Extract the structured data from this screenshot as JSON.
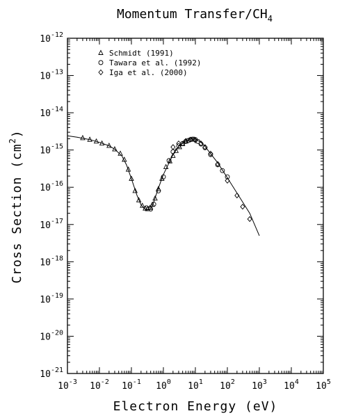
{
  "chart_data": {
    "type": "scatter",
    "title_main": "Momentum Transfer/CH",
    "title_sub": "4",
    "xlabel": "Electron Energy (eV)",
    "ylabel_main": "Cross Section (cm",
    "ylabel_sup": "2",
    "ylabel_end": ")",
    "x_scale": "log",
    "y_scale": "log",
    "xlim": [
      0.001,
      100000
    ],
    "ylim": [
      1e-21,
      1e-12
    ],
    "x_ticks": [
      {
        "base": "10",
        "exp": "-3",
        "value": 0.001
      },
      {
        "base": "10",
        "exp": "-2",
        "value": 0.01
      },
      {
        "base": "10",
        "exp": "-1",
        "value": 0.1
      },
      {
        "base": "10",
        "exp": "0",
        "value": 1
      },
      {
        "base": "10",
        "exp": "1",
        "value": 10
      },
      {
        "base": "10",
        "exp": "2",
        "value": 100
      },
      {
        "base": "10",
        "exp": "3",
        "value": 1000
      },
      {
        "base": "10",
        "exp": "4",
        "value": 10000
      },
      {
        "base": "10",
        "exp": "5",
        "value": 100000
      }
    ],
    "y_ticks": [
      {
        "base": "10",
        "exp": "-21",
        "value": 1e-21
      },
      {
        "base": "10",
        "exp": "-20",
        "value": 1e-20
      },
      {
        "base": "10",
        "exp": "-19",
        "value": 1e-19
      },
      {
        "base": "10",
        "exp": "-18",
        "value": 1e-18
      },
      {
        "base": "10",
        "exp": "-17",
        "value": 1e-17
      },
      {
        "base": "10",
        "exp": "-16",
        "value": 1e-16
      },
      {
        "base": "10",
        "exp": "-15",
        "value": 1e-15
      },
      {
        "base": "10",
        "exp": "-14",
        "value": 1e-14
      },
      {
        "base": "10",
        "exp": "-13",
        "value": 1e-13
      },
      {
        "base": "10",
        "exp": "-12",
        "value": 1e-12
      }
    ],
    "grid": false,
    "legend_position": "top-left",
    "legend": [
      {
        "label": "Schmidt (1991)",
        "marker": "triangle"
      },
      {
        "label": "Tawara et al. (1992)",
        "marker": "circle"
      },
      {
        "label": "Iga et al. (2000)",
        "marker": "diamond"
      }
    ],
    "recommended_curve": {
      "x": [
        0.001,
        0.002,
        0.005,
        0.01,
        0.02,
        0.03,
        0.05,
        0.07,
        0.1,
        0.15,
        0.2,
        0.25,
        0.3,
        0.35,
        0.4,
        0.45,
        0.5,
        0.6,
        0.8,
        1,
        1.5,
        2,
        3,
        5,
        7,
        8,
        10,
        15,
        20,
        30,
        50,
        100,
        200,
        500,
        1000
      ],
      "y": [
        2.4e-15,
        2.2e-15,
        1.9e-15,
        1.6e-15,
        1.3e-15,
        1.05e-15,
        7e-16,
        4e-16,
        1.7e-16,
        6e-17,
        3.4e-17,
        2.7e-17,
        2.5e-17,
        2.5e-17,
        2.7e-17,
        3.2e-17,
        4e-17,
        6.5e-17,
        1.3e-16,
        2.2e-16,
        4.5e-16,
        7.5e-16,
        1.25e-15,
        1.75e-15,
        1.95e-15,
        2e-15,
        1.95e-15,
        1.6e-15,
        1.25e-15,
        8e-16,
        4.5e-16,
        1.8e-16,
        7e-17,
        2e-17,
        5e-18
      ]
    },
    "series": [
      {
        "name": "Schmidt (1991)",
        "marker": "triangle",
        "x": [
          0.003,
          0.005,
          0.008,
          0.012,
          0.02,
          0.03,
          0.045,
          0.06,
          0.08,
          0.1,
          0.13,
          0.17,
          0.22,
          0.27,
          0.32,
          0.38,
          0.45,
          0.55,
          0.7,
          0.9,
          1.2,
          1.6,
          2,
          2.5,
          3.2,
          4,
          5
        ],
        "y": [
          2.1e-15,
          1.9e-15,
          1.7e-15,
          1.5e-15,
          1.3e-15,
          1.05e-15,
          8e-16,
          5.5e-16,
          3e-16,
          1.7e-16,
          8e-17,
          4.5e-17,
          3.2e-17,
          2.7e-17,
          2.6e-17,
          2.8e-17,
          3.4e-17,
          5e-17,
          9e-17,
          1.7e-16,
          3.5e-16,
          5e-16,
          7e-16,
          9.5e-16,
          1.2e-15,
          1.45e-15,
          1.7e-15
        ]
      },
      {
        "name": "Tawara et al. (1992)",
        "marker": "circle",
        "x": [
          0.3,
          0.4,
          0.5,
          0.7,
          1,
          1.5,
          2,
          3,
          4,
          5,
          6,
          7,
          8,
          9,
          10,
          12,
          15,
          20,
          30,
          50,
          70,
          100
        ],
        "y": [
          2.8e-17,
          2.6e-17,
          3.5e-17,
          8e-17,
          1.9e-16,
          5.2e-16,
          9e-16,
          1.3e-15,
          1.5e-15,
          1.7e-15,
          1.8e-15,
          1.9e-15,
          1.95e-15,
          1.95e-15,
          1.9e-15,
          1.7e-15,
          1.45e-15,
          1.15e-15,
          7.5e-16,
          4e-16,
          2.8e-16,
          1.9e-16
        ]
      },
      {
        "name": "Iga et al. (2000)",
        "marker": "diamond",
        "x": [
          2,
          3,
          5,
          7,
          10,
          15,
          20,
          30,
          50,
          100,
          200,
          300,
          500
        ],
        "y": [
          1.2e-15,
          1.5e-15,
          1.75e-15,
          1.9e-15,
          1.8e-15,
          1.5e-15,
          1.2e-15,
          8e-16,
          4.2e-16,
          1.5e-16,
          6e-17,
          3e-17,
          1.4e-17
        ]
      }
    ]
  }
}
